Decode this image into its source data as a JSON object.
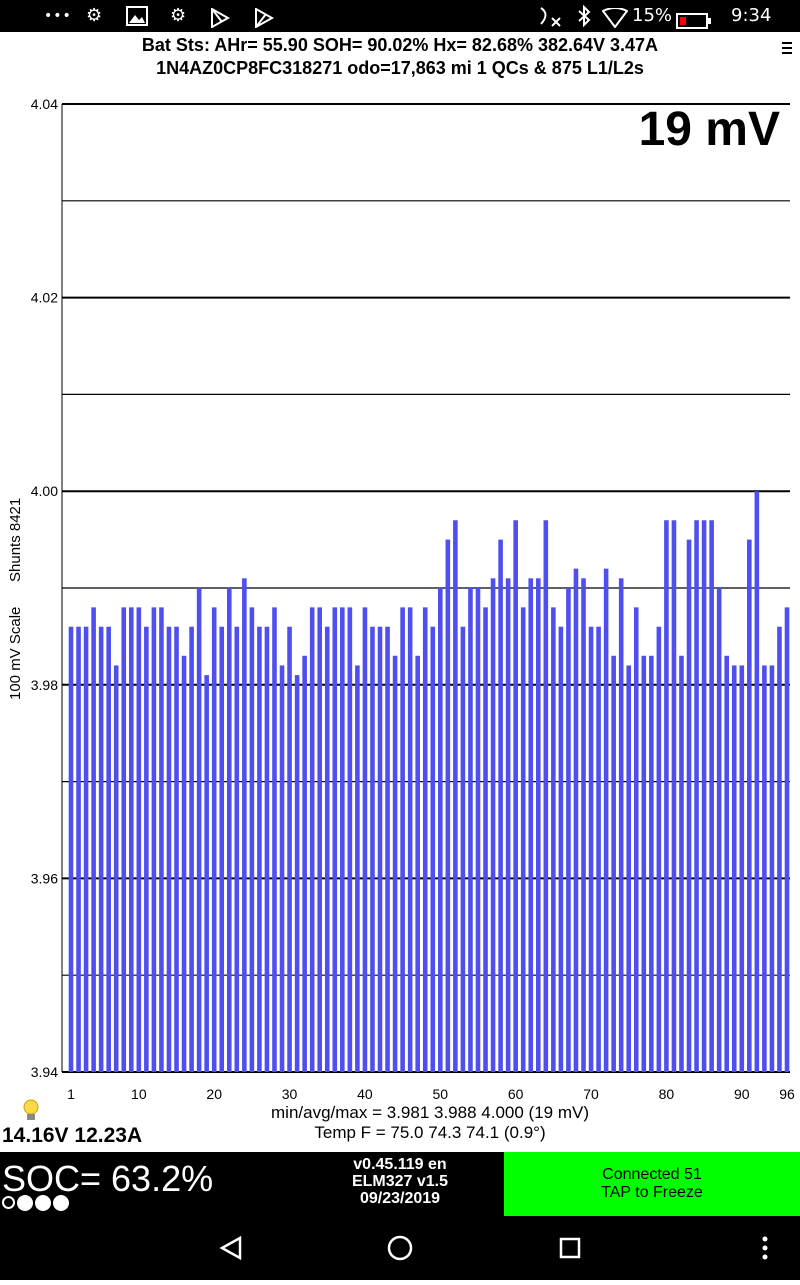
{
  "status_bar": {
    "more_glyph": "•••",
    "battery": "15%",
    "time": "9:34"
  },
  "header": {
    "line1": "Bat Sts:  AHr= 55.90  SOH= 90.02%   Hx= 82.68%   382.64V 3.47A",
    "line2": "1N4AZ0CP8FC318271 odo=17,863 mi  1 QCs & 875 L1/L2s"
  },
  "chart_data": {
    "type": "bar",
    "big_label": "19 mV",
    "ylabel_left": "100 mV Scale",
    "ylabel_right": "Shunts 8421",
    "ylim": [
      3.94,
      4.04
    ],
    "yticks": [
      "3.94",
      "3.96",
      "3.98",
      "4.00",
      "4.02",
      "4.04"
    ],
    "xticks": [
      "1",
      "10",
      "20",
      "30",
      "40",
      "50",
      "60",
      "70",
      "80",
      "90",
      "96"
    ],
    "bar_color": "#4f4ff0",
    "values": [
      3.986,
      3.986,
      3.986,
      3.988,
      3.986,
      3.986,
      3.982,
      3.988,
      3.988,
      3.988,
      3.986,
      3.988,
      3.988,
      3.986,
      3.986,
      3.983,
      3.986,
      3.99,
      3.981,
      3.988,
      3.986,
      3.99,
      3.986,
      3.991,
      3.988,
      3.986,
      3.986,
      3.988,
      3.982,
      3.986,
      3.981,
      3.983,
      3.988,
      3.988,
      3.986,
      3.988,
      3.988,
      3.988,
      3.982,
      3.988,
      3.986,
      3.986,
      3.986,
      3.983,
      3.988,
      3.988,
      3.983,
      3.988,
      3.986,
      3.99,
      3.995,
      3.997,
      3.986,
      3.99,
      3.99,
      3.988,
      3.991,
      3.995,
      3.991,
      3.997,
      3.988,
      3.991,
      3.991,
      3.997,
      3.988,
      3.986,
      3.99,
      3.992,
      3.991,
      3.986,
      3.986,
      3.992,
      3.983,
      3.991,
      3.982,
      3.988,
      3.983,
      3.983,
      3.986,
      3.997,
      3.997,
      3.983,
      3.995,
      3.997,
      3.997,
      3.997,
      3.99,
      3.983,
      3.982,
      3.982,
      3.995,
      4.0,
      3.982,
      3.982,
      3.986,
      3.988
    ]
  },
  "stats": {
    "minavgmax": "min/avg/max = 3.981 3.988 4.000  (19 mV)",
    "temp": "Temp F = 75.0  74.3  74.1  (0.9°)"
  },
  "aux_battery": "14.16V 12.23A",
  "soc": {
    "text": "SOC= 63.2%"
  },
  "version": {
    "line1": "v0.45.119 en",
    "line2": "ELM327 v1.5",
    "line3": "09/23/2019"
  },
  "connect_button": {
    "line1": "Connected 51",
    "line2": "TAP to Freeze"
  },
  "colors": {
    "accent_green": "#00ff00",
    "bar_blue": "#4f4ff0",
    "battery_low": "#ff0000"
  }
}
